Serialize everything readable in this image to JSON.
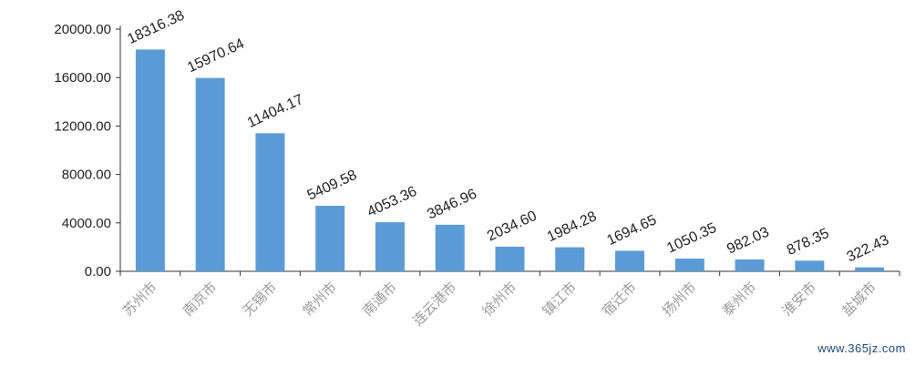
{
  "chart_data": {
    "type": "bar",
    "categories": [
      "苏州市",
      "南京市",
      "无锡市",
      "常州市",
      "南通市",
      "连云港市",
      "徐州市",
      "镇江市",
      "宿迁市",
      "扬州市",
      "泰州市",
      "淮安市",
      "盐城市"
    ],
    "values": [
      18316.38,
      15970.64,
      11404.17,
      5409.58,
      4053.36,
      3846.96,
      2034.6,
      1984.28,
      1694.65,
      1050.35,
      982.03,
      878.35,
      322.43
    ],
    "value_labels": [
      "18316.38",
      "15970.64",
      "11404.17",
      "5409.58",
      "4053.36",
      "3846.96",
      "2034.60",
      "1984.28",
      "1694.65",
      "1050.35",
      "982.03",
      "878.35",
      "322.43"
    ],
    "yticks": [
      "0.00",
      "4000.00",
      "8000.00",
      "12000.00",
      "16000.00",
      "20000.00"
    ],
    "ylim": [
      0,
      20000
    ],
    "bar_color": "#5b9bd5",
    "grid": false
  },
  "watermark": "www.365jz.com"
}
